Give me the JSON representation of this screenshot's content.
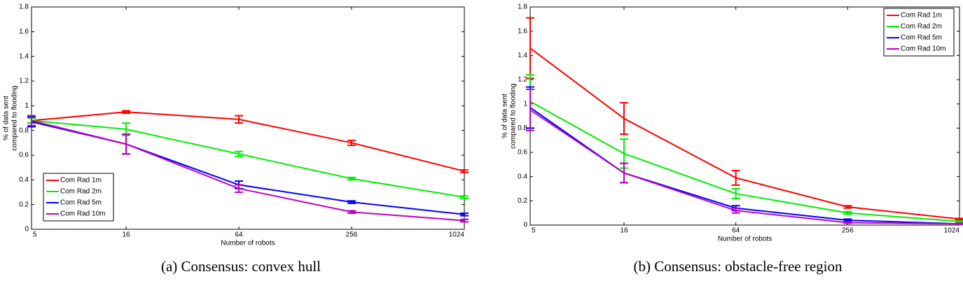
{
  "chart_data": [
    {
      "type": "line",
      "xscale": "log",
      "xlabel": "Number of robots",
      "ylabel": [
        "% of data sent",
        "compared to flooding"
      ],
      "caption": "(a) Consensus: convex hull",
      "legend": "lower left",
      "x": [
        5,
        16,
        64,
        256,
        1024
      ],
      "xlim": [
        5,
        1024
      ],
      "xticks": [
        5,
        16,
        64,
        256,
        1024
      ],
      "ylim": [
        0,
        1.8
      ],
      "yticks": [
        0,
        0.2,
        0.4,
        0.6,
        0.8,
        1,
        1.2,
        1.4,
        1.6,
        1.8
      ],
      "series": [
        {
          "name": "Com Rad 1m",
          "color": "#ff0000",
          "values": [
            0.88,
            0.95,
            0.89,
            0.7,
            0.47
          ],
          "errors": [
            0.02,
            0.01,
            0.03,
            0.02,
            0.01
          ]
        },
        {
          "name": "Com Rad 2m",
          "color": "#00ee00",
          "values": [
            0.88,
            0.81,
            0.61,
            0.41,
            0.26
          ],
          "errors": [
            0.02,
            0.05,
            0.02,
            0.01,
            0.01
          ]
        },
        {
          "name": "Com Rad 5m",
          "color": "#0000ff",
          "values": [
            0.87,
            0.69,
            0.36,
            0.22,
            0.12
          ],
          "errors": [
            0.04,
            0.08,
            0.03,
            0.01,
            0.01
          ]
        },
        {
          "name": "Com Rad 10m",
          "color": "#bf00bf",
          "values": [
            0.88,
            0.69,
            0.33,
            0.14,
            0.07
          ],
          "errors": [
            0.04,
            0.08,
            0.03,
            0.01,
            0.01
          ]
        }
      ]
    },
    {
      "type": "line",
      "xscale": "log",
      "xlabel": "Number of robots",
      "ylabel": [
        "% of data sent",
        "compared to flooding"
      ],
      "caption": "(b) Consensus: obstacle-free region",
      "legend": "upper right",
      "x": [
        5,
        16,
        64,
        256,
        1024
      ],
      "xlim": [
        5,
        1024
      ],
      "xticks": [
        5,
        16,
        64,
        256,
        1024
      ],
      "ylim": [
        0,
        1.8
      ],
      "yticks": [
        0,
        0.2,
        0.4,
        0.6,
        0.8,
        1,
        1.2,
        1.4,
        1.6,
        1.8
      ],
      "series": [
        {
          "name": "Com Rad 1m",
          "color": "#ff0000",
          "values": [
            1.46,
            0.88,
            0.39,
            0.15,
            0.05
          ],
          "errors": [
            0.25,
            0.13,
            0.06,
            0.01,
            0.005
          ]
        },
        {
          "name": "Com Rad 2m",
          "color": "#00ee00",
          "values": [
            1.02,
            0.59,
            0.26,
            0.1,
            0.03
          ],
          "errors": [
            0.22,
            0.12,
            0.04,
            0.01,
            0.005
          ]
        },
        {
          "name": "Com Rad 5m",
          "color": "#0000ff",
          "values": [
            0.97,
            0.43,
            0.14,
            0.04,
            0.01
          ],
          "errors": [
            0.17,
            0.08,
            0.02,
            0.01,
            0.005
          ]
        },
        {
          "name": "Com Rad 10m",
          "color": "#bf00bf",
          "values": [
            0.95,
            0.43,
            0.12,
            0.02,
            0.01
          ],
          "errors": [
            0.17,
            0.08,
            0.02,
            0.005,
            0.005
          ]
        }
      ]
    }
  ]
}
